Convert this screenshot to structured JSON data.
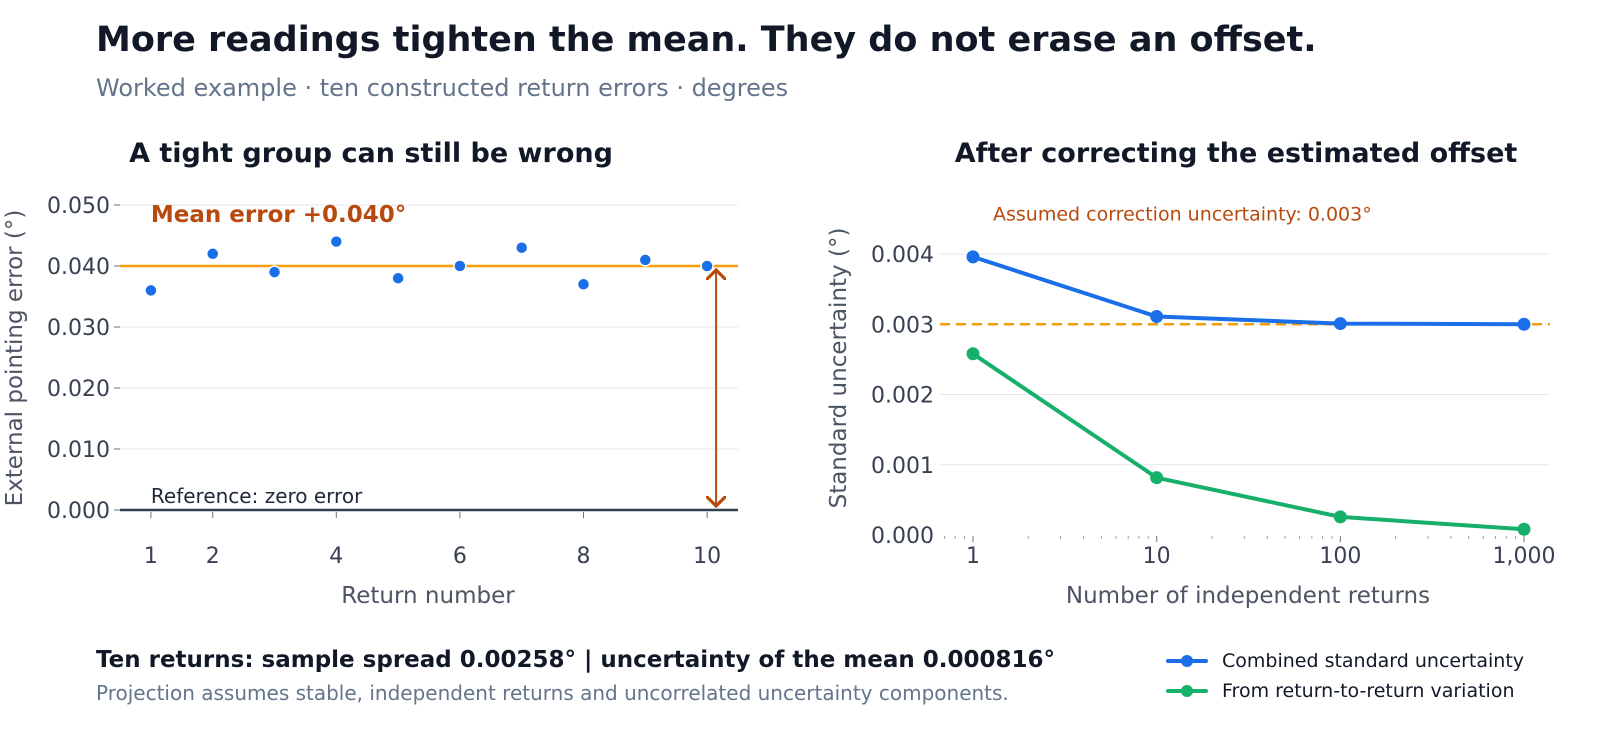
{
  "headline": "More readings tighten the mean. They do not erase an offset.",
  "subhead": "Worked example · ten constructed return errors · degrees",
  "footer": {
    "main": "Ten returns: sample spread 0.00258°  |  uncertainty of the mean 0.000816°",
    "note": "Projection assumes stable, independent returns and uncorrelated uncertainty components."
  },
  "legend": [
    {
      "label": "Combined standard uncertainty",
      "color": "#1a6fe8"
    },
    {
      "label": "From return-to-return variation",
      "color": "#16b06a"
    }
  ],
  "chart_data": [
    {
      "type": "scatter",
      "title": "A tight group can still be wrong",
      "xlabel": "Return number",
      "ylabel": "External pointing error (°)",
      "x": [
        1,
        2,
        3,
        4,
        5,
        6,
        7,
        8,
        9,
        10
      ],
      "y": [
        0.036,
        0.042,
        0.039,
        0.044,
        0.038,
        0.04,
        0.043,
        0.037,
        0.041,
        0.04
      ],
      "xlim": [
        0.5,
        10.5
      ],
      "ylim": [
        0,
        0.05
      ],
      "xticks": [
        1,
        2,
        4,
        6,
        8,
        10
      ],
      "yticks": [
        0.0,
        0.01,
        0.02,
        0.03,
        0.04,
        0.05
      ],
      "ytick_labels": [
        "0.000",
        "0.010",
        "0.020",
        "0.030",
        "0.040",
        "0.050"
      ],
      "mean_line": {
        "value": 0.04,
        "label": "Mean error +0.040°",
        "color": "#f59e0b"
      },
      "reference_line": {
        "value": 0,
        "label": "Reference: zero error"
      },
      "grid": true,
      "point_color": "#1a6fe8",
      "annotation_color": "#b84a0e"
    },
    {
      "type": "line",
      "title": "After correcting the estimated offset",
      "xlabel": "Number of independent returns",
      "ylabel": "Standard uncertainty (°)",
      "x_scale": "log",
      "x": [
        1,
        10,
        100,
        1000
      ],
      "xtick_labels": [
        "1",
        "10",
        "100",
        "1,000"
      ],
      "yticks": [
        0.0,
        0.001,
        0.002,
        0.003,
        0.004
      ],
      "ytick_labels": [
        "0.000",
        "0.001",
        "0.002",
        "0.003",
        "0.004"
      ],
      "ylim": [
        0,
        0.0042
      ],
      "series": [
        {
          "name": "Combined standard uncertainty",
          "values": [
            0.00396,
            0.00311,
            0.00301,
            0.003
          ],
          "color": "#1a6fe8"
        },
        {
          "name": "From return-to-return variation",
          "values": [
            0.00258,
            0.000816,
            0.000258,
            8.16e-05
          ],
          "color": "#16b06a"
        }
      ],
      "reference_line": {
        "value": 0.003,
        "label": "Assumed correction uncertainty: 0.003°",
        "color": "#f59e0b",
        "style": "dashed"
      },
      "grid": true
    }
  ]
}
